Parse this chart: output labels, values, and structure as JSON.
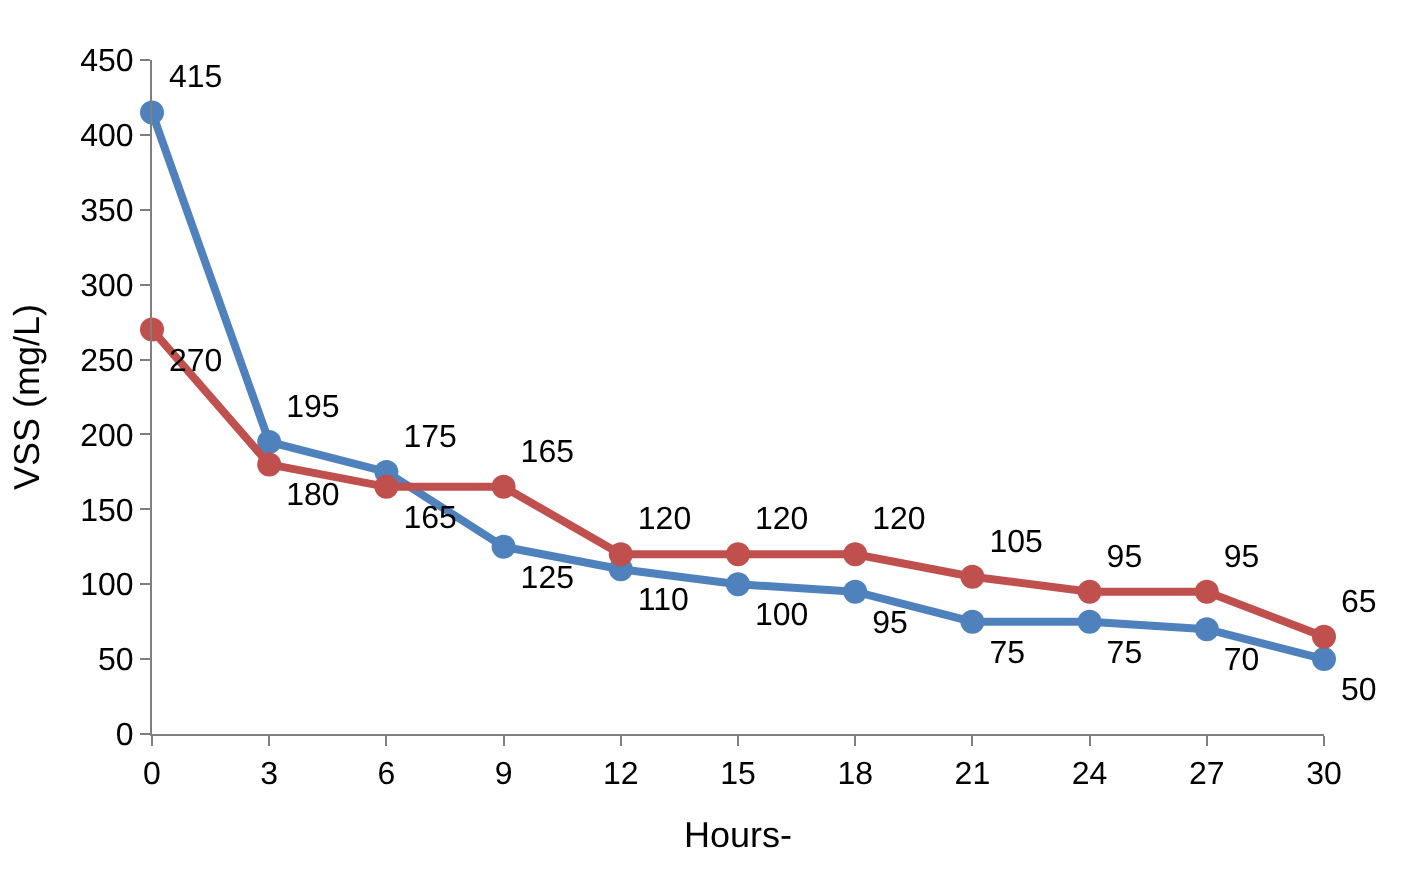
{
  "chart_data": {
    "type": "line",
    "xlabel": "Hours-",
    "ylabel": "VSS (mg/L)",
    "x": [
      0,
      3,
      6,
      9,
      12,
      15,
      18,
      21,
      24,
      27,
      30
    ],
    "series": [
      {
        "color": "#4f81bd",
        "values": [
          415,
          195,
          175,
          125,
          110,
          100,
          95,
          75,
          75,
          70,
          50
        ]
      },
      {
        "color": "#c0504d",
        "values": [
          270,
          180,
          165,
          165,
          120,
          120,
          120,
          105,
          95,
          95,
          65
        ]
      }
    ],
    "xlim": [
      0,
      30
    ],
    "xticks": [
      0,
      3,
      6,
      9,
      12,
      15,
      18,
      21,
      24,
      27,
      30
    ],
    "ylim": [
      0,
      450
    ],
    "yticks": [
      0,
      50,
      100,
      150,
      200,
      250,
      300,
      350,
      400,
      450
    ],
    "marker": "circle",
    "line_style": "solid",
    "data_labels": true
  }
}
